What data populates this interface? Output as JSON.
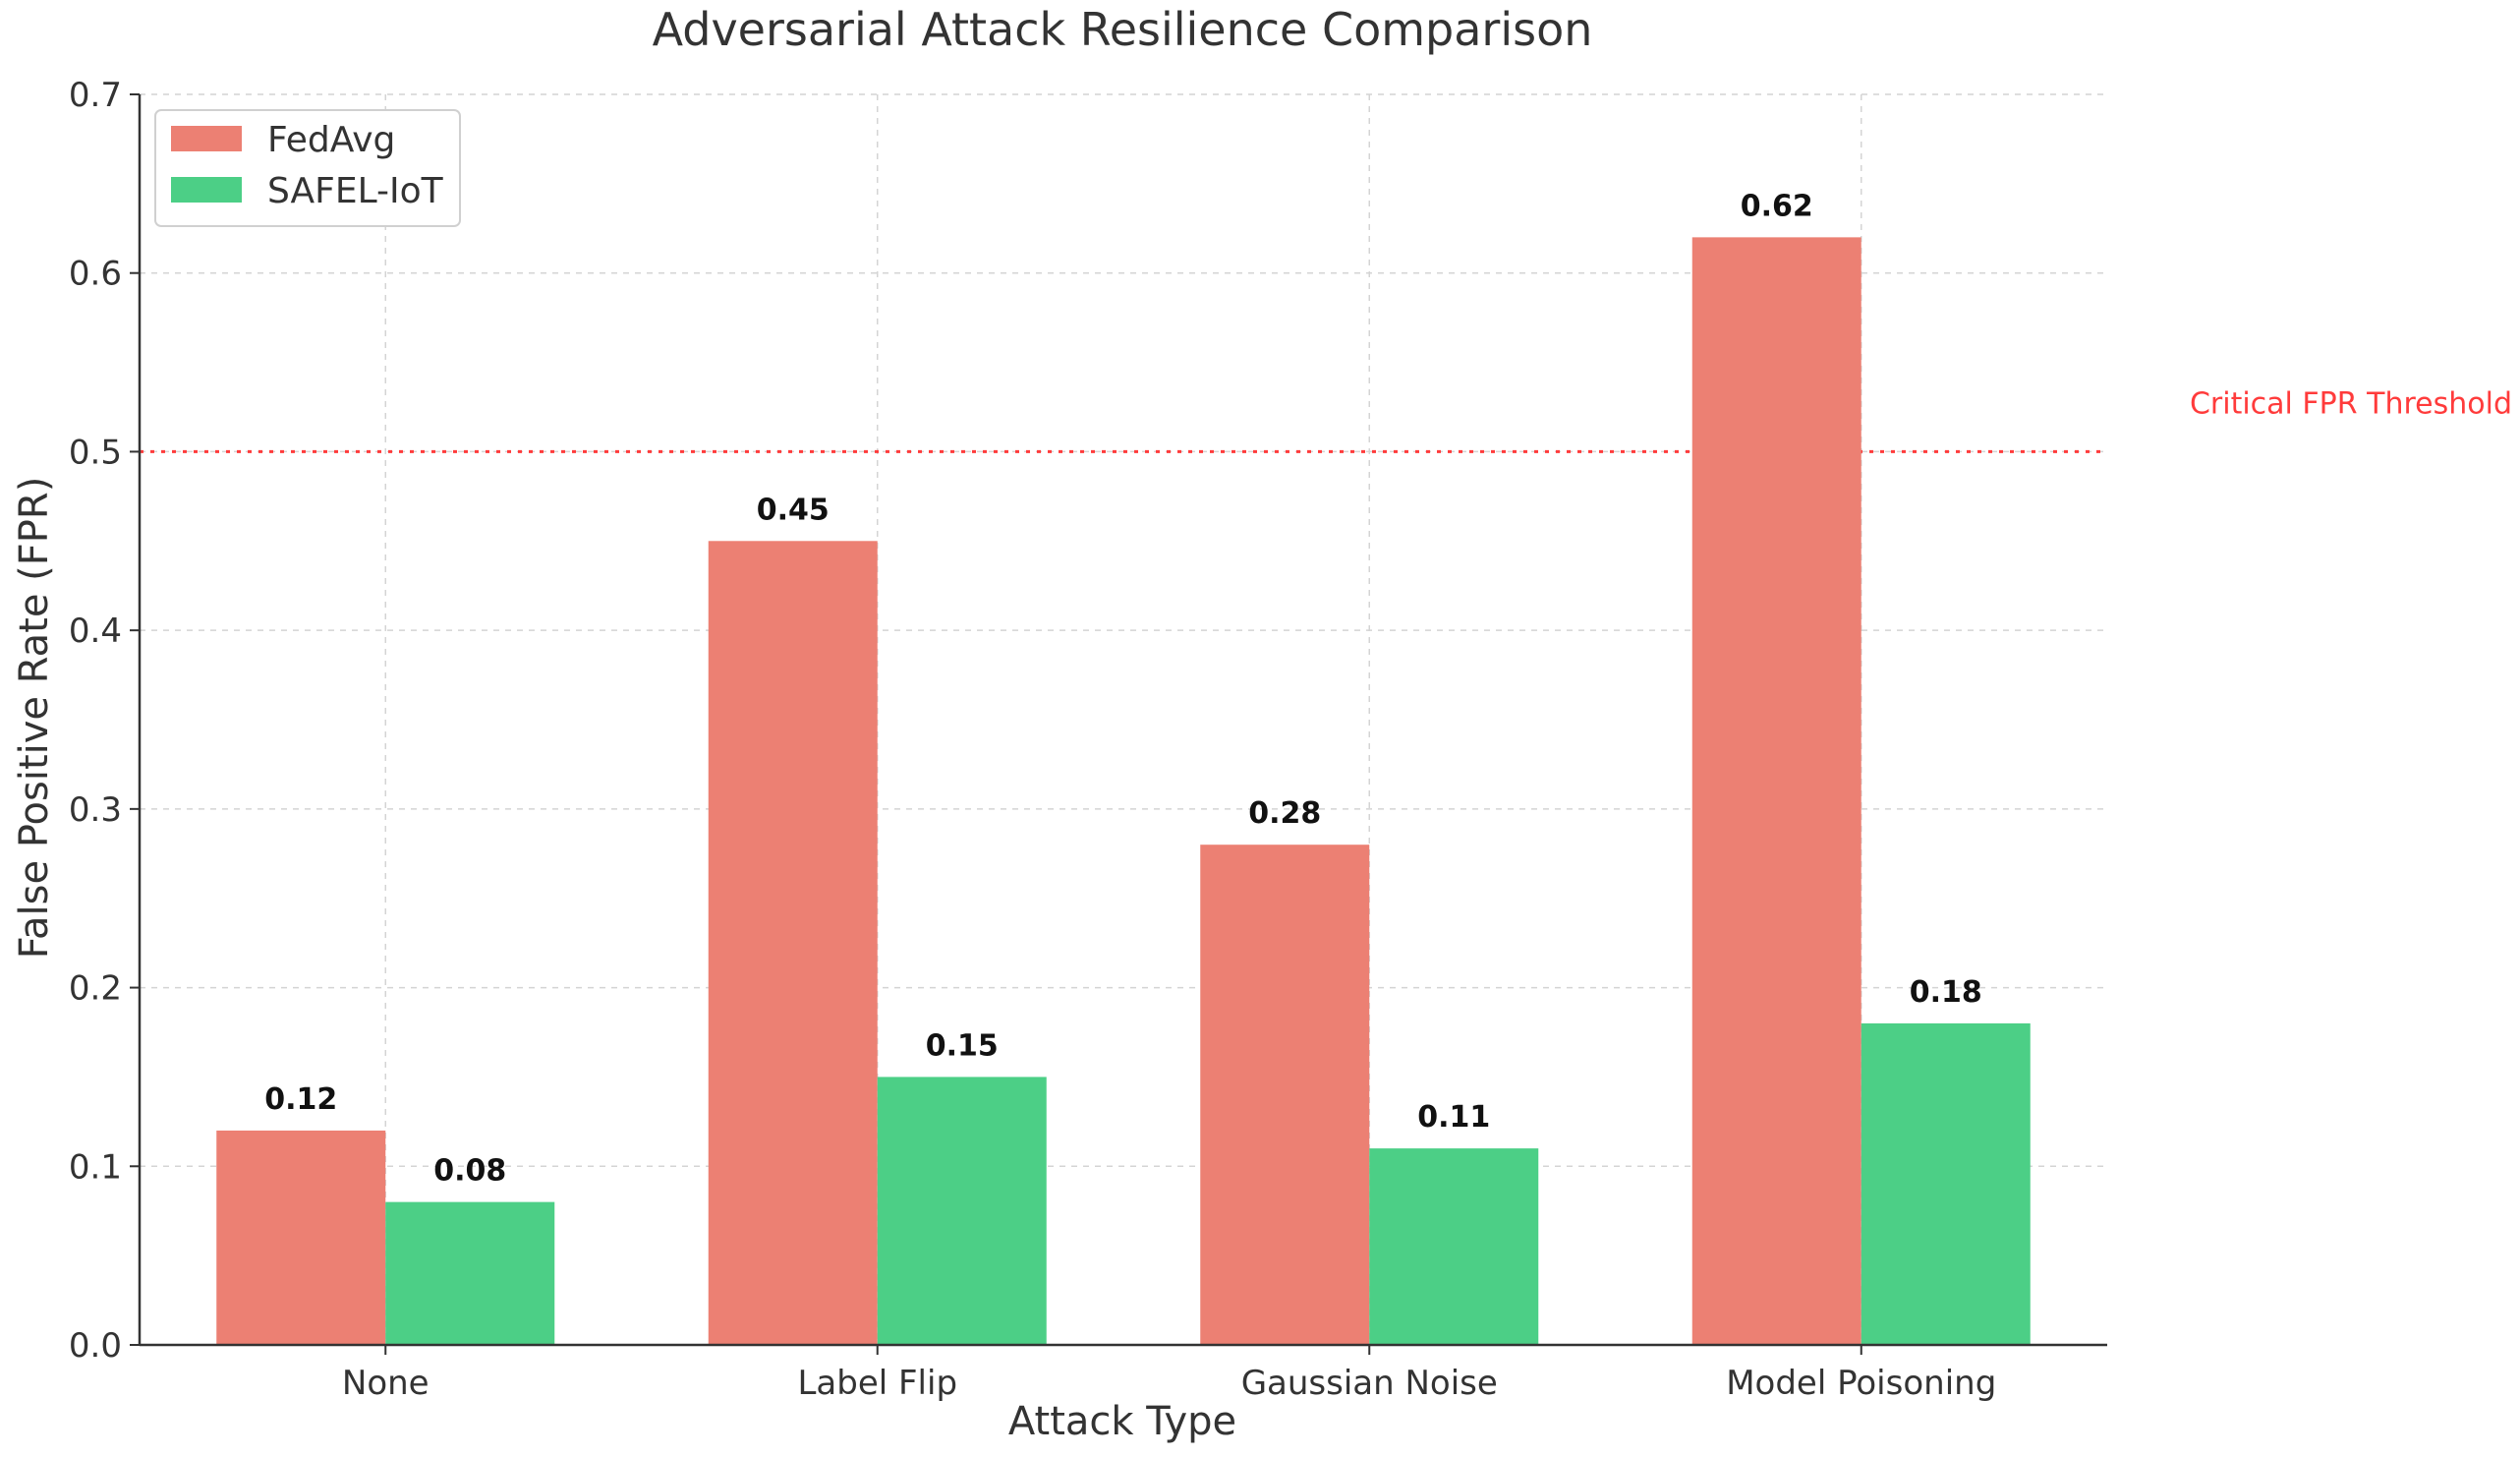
{
  "chart_data": {
    "type": "bar",
    "title": "Adversarial Attack Resilience Comparison",
    "xlabel": "Attack Type",
    "ylabel": "False Positive Rate (FPR)",
    "categories": [
      "None",
      "Label Flip",
      "Gaussian Noise",
      "Model Poisoning"
    ],
    "series": [
      {
        "name": "FedAvg",
        "values": [
          0.12,
          0.45,
          0.28,
          0.62
        ],
        "color": "#ec8073"
      },
      {
        "name": "SAFEL-IoT",
        "values": [
          0.08,
          0.15,
          0.11,
          0.18
        ],
        "color": "#4ccf86"
      }
    ],
    "data_labels": [
      [
        "0.12",
        "0.45",
        "0.28",
        "0.62"
      ],
      [
        "0.08",
        "0.15",
        "0.11",
        "0.18"
      ]
    ],
    "ylim": [
      0,
      0.7
    ],
    "yticks": [
      "0.0",
      "0.1",
      "0.2",
      "0.3",
      "0.4",
      "0.5",
      "0.6",
      "0.7"
    ],
    "grid": true,
    "legend_position": "top-left",
    "threshold": {
      "value": 0.5,
      "label": "Critical FPR Threshold",
      "color": "#ff3b3b"
    }
  }
}
